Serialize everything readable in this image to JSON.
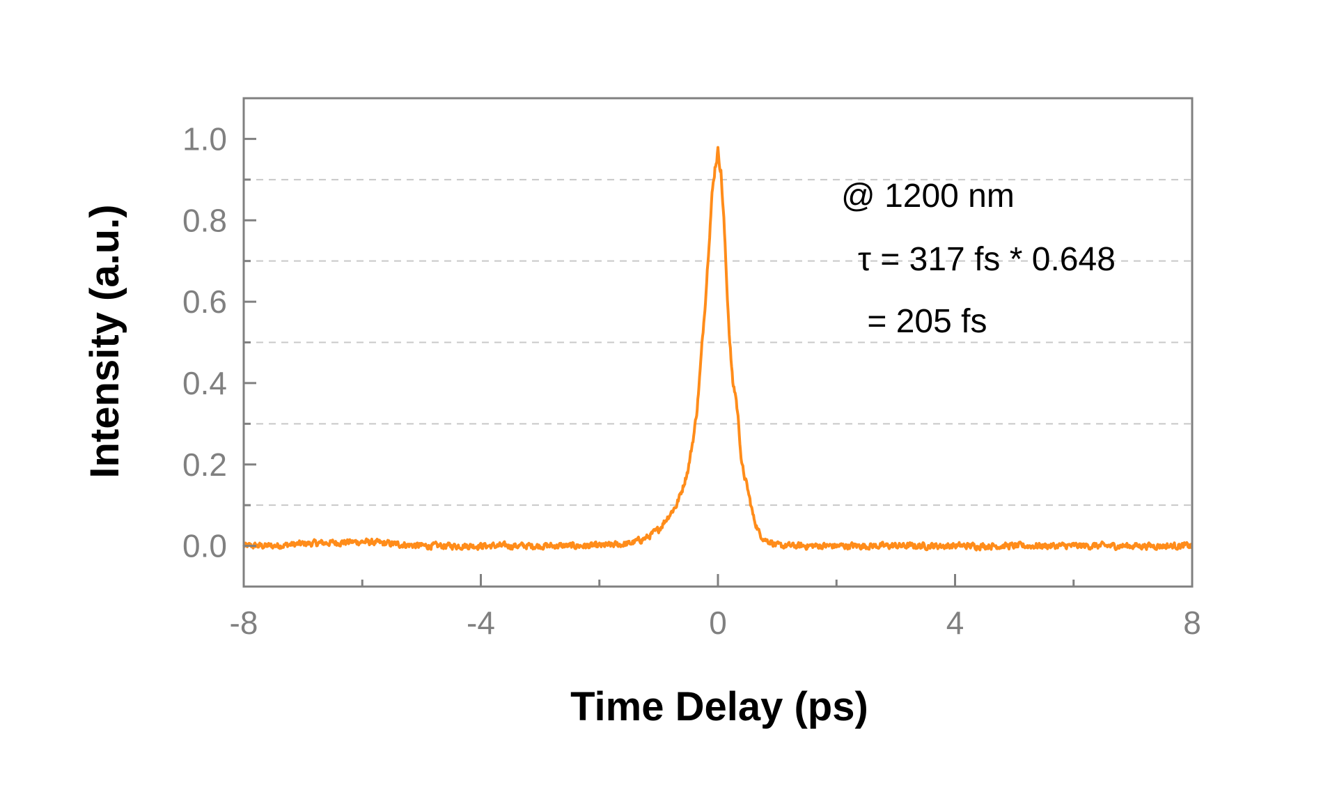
{
  "colors": {
    "trace": "#FF8C1A",
    "frame": "#808080",
    "grid": "#C8C8C8",
    "tick_label": "#808080",
    "text": "#000000"
  },
  "chart_data": {
    "type": "line",
    "xlabel": "Time Delay (ps)",
    "ylabel": "Intensity (a.u.)",
    "xlim": [
      -8,
      8
    ],
    "ylim": [
      -0.1,
      1.1
    ],
    "x_ticks": [
      -8,
      -4,
      0,
      4,
      8
    ],
    "x_tick_labels": [
      "-8",
      "-4",
      "0",
      "4",
      "8"
    ],
    "x_minor_ticks": [
      -6,
      -2,
      2,
      6
    ],
    "y_ticks": [
      0.0,
      0.2,
      0.4,
      0.6,
      0.8,
      1.0
    ],
    "y_tick_labels": [
      "0.0",
      "0.2",
      "0.4",
      "0.6",
      "0.8",
      "1.0"
    ],
    "grid": "horizontal dashed at 0.1, 0.3, 0.5, 0.7, 0.9",
    "grid_y": [
      0.1,
      0.3,
      0.5,
      0.7,
      0.9
    ],
    "annotations": [
      "@ 1200 nm",
      "τ = 317 fs * 0.648",
      " = 205 fs"
    ],
    "series": [
      {
        "x": [
          -8.0,
          -7.5,
          -7.0,
          -6.5,
          -6.0,
          -5.5,
          -5.0,
          -4.5,
          -4.0,
          -3.5,
          -3.0,
          -2.5,
          -2.0,
          -1.5,
          -1.2,
          -1.0,
          -0.9,
          -0.8,
          -0.7,
          -0.6,
          -0.5,
          -0.4,
          -0.35,
          -0.3,
          -0.25,
          -0.2,
          -0.15,
          -0.1,
          -0.05,
          0.0,
          0.05,
          0.1,
          0.15,
          0.2,
          0.25,
          0.3,
          0.35,
          0.4,
          0.5,
          0.6,
          0.7,
          0.8,
          0.9,
          1.0,
          1.2,
          1.5,
          2.0,
          2.5,
          3.0,
          3.5,
          4.0,
          4.5,
          5.0,
          5.5,
          6.0,
          6.5,
          7.0,
          7.5,
          8.0
        ],
        "y": [
          0.0,
          0.0,
          0.005,
          0.008,
          0.01,
          0.005,
          0.0,
          0.0,
          0.0,
          0.0,
          0.0,
          0.0,
          0.0,
          0.005,
          0.02,
          0.04,
          0.06,
          0.08,
          0.1,
          0.14,
          0.19,
          0.28,
          0.34,
          0.43,
          0.53,
          0.63,
          0.75,
          0.86,
          0.93,
          0.97,
          0.92,
          0.8,
          0.64,
          0.5,
          0.4,
          0.37,
          0.3,
          0.2,
          0.14,
          0.07,
          0.03,
          0.015,
          0.01,
          0.0,
          0.0,
          0.0,
          0.0,
          0.0,
          0.0,
          0.0,
          0.0,
          0.0,
          0.0,
          0.0,
          0.0,
          0.0,
          0.0,
          0.0,
          0.0
        ],
        "noise_amplitude": 0.012
      }
    ]
  }
}
